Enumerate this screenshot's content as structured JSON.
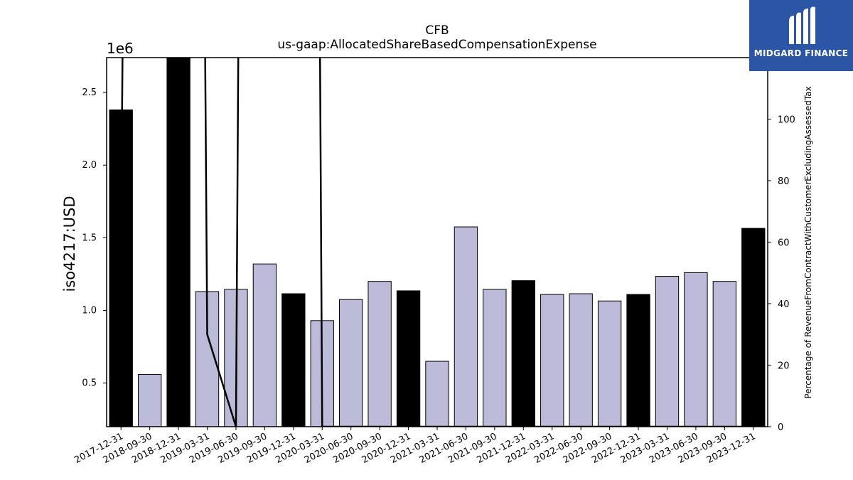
{
  "chart_data": {
    "type": "bar",
    "title": "CFB",
    "subtitle": "us-gaap:AllocatedShareBasedCompensationExpense",
    "ylabel": "iso4217:USD",
    "y_offset_label": "1e6",
    "y2label": "Percentage of RevenueFromContractWithCustomerExcludingAssessedTax",
    "ylim": [
      200000,
      2740000
    ],
    "y2lim": [
      0,
      120
    ],
    "yticks": [
      {
        "value": 500000,
        "label": "0.5"
      },
      {
        "value": 1000000,
        "label": "1.0"
      },
      {
        "value": 1500000,
        "label": "1.5"
      },
      {
        "value": 2000000,
        "label": "2.0"
      },
      {
        "value": 2500000,
        "label": "2.5"
      }
    ],
    "y2ticks": [
      {
        "value": 0,
        "label": "0"
      },
      {
        "value": 20,
        "label": "20"
      },
      {
        "value": 40,
        "label": "40"
      },
      {
        "value": 60,
        "label": "60"
      },
      {
        "value": 80,
        "label": "80"
      },
      {
        "value": 100,
        "label": "100"
      }
    ],
    "categories": [
      "2017-12-31",
      "2018-09-30",
      "2018-12-31",
      "2019-03-31",
      "2019-06-30",
      "2019-09-30",
      "2019-12-31",
      "2020-03-31",
      "2020-06-30",
      "2020-09-30",
      "2020-12-31",
      "2021-03-31",
      "2021-06-30",
      "2021-09-30",
      "2021-12-31",
      "2022-03-31",
      "2022-06-30",
      "2022-09-30",
      "2022-12-31",
      "2023-03-31",
      "2023-06-30",
      "2023-09-30",
      "2023-12-31"
    ],
    "values": [
      2380000,
      560000,
      2750000,
      1130000,
      1145000,
      1320000,
      1115000,
      930000,
      1075000,
      1200000,
      1135000,
      650000,
      1575000,
      1145000,
      1205000,
      1110000,
      1115000,
      1065000,
      1110000,
      1235000,
      1260000,
      1200000,
      1565000
    ],
    "annual": [
      true,
      false,
      true,
      false,
      false,
      false,
      true,
      false,
      false,
      false,
      true,
      false,
      false,
      false,
      true,
      false,
      false,
      false,
      true,
      false,
      false,
      false,
      true
    ],
    "bar_colors": {
      "annual": "#000000",
      "quarterly": "#bcbad9"
    },
    "line_series": {
      "values": [
        60,
        1200,
        1300,
        30,
        0,
        1500,
        1600,
        0,
        0,
        0,
        0,
        0,
        0,
        0,
        0,
        0,
        0,
        0,
        0,
        0,
        0,
        0,
        0
      ],
      "color": "#000000"
    },
    "grid": false
  },
  "logo": {
    "text": "MIDGARD FINANCE",
    "color": "#2a56a5"
  }
}
